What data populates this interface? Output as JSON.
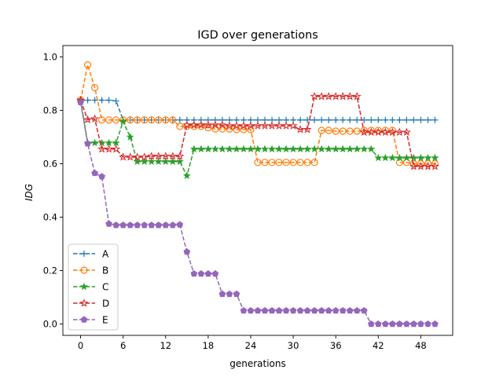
{
  "chart_data": {
    "type": "line",
    "title": "IGD over generations",
    "xlabel": "generations",
    "ylabel": "IDG",
    "xlim": [
      -2.5,
      52.5
    ],
    "ylim": [
      -0.0425,
      1.0425
    ],
    "xticks": [
      0,
      6,
      12,
      18,
      24,
      30,
      36,
      42,
      48
    ],
    "yticks": [
      "0.0",
      "0.2",
      "0.4",
      "0.6",
      "0.8",
      "1.0"
    ],
    "grid": false,
    "legend_position": "lower left",
    "x": [
      0,
      1,
      2,
      3,
      4,
      5,
      6,
      7,
      8,
      9,
      10,
      11,
      12,
      13,
      14,
      15,
      16,
      17,
      18,
      19,
      20,
      21,
      22,
      23,
      24,
      25,
      26,
      27,
      28,
      29,
      30,
      31,
      32,
      33,
      34,
      35,
      36,
      37,
      38,
      39,
      40,
      41,
      42,
      43,
      44,
      45,
      46,
      47,
      48,
      49,
      50
    ],
    "series": [
      {
        "name": "A",
        "color": "#1f77b4",
        "marker": "plus",
        "values": [
          0.838,
          0.838,
          0.838,
          0.838,
          0.838,
          0.835,
          0.764,
          0.764,
          0.764,
          0.764,
          0.764,
          0.764,
          0.764,
          0.764,
          0.764,
          0.764,
          0.764,
          0.764,
          0.764,
          0.764,
          0.764,
          0.764,
          0.764,
          0.764,
          0.764,
          0.764,
          0.764,
          0.764,
          0.764,
          0.764,
          0.764,
          0.764,
          0.764,
          0.764,
          0.764,
          0.764,
          0.764,
          0.764,
          0.764,
          0.764,
          0.764,
          0.764,
          0.764,
          0.764,
          0.764,
          0.764,
          0.764,
          0.764,
          0.764,
          0.764,
          0.764
        ]
      },
      {
        "name": "B",
        "color": "#ff7f0e",
        "marker": "circle",
        "values": [
          0.838,
          0.97,
          0.885,
          0.764,
          0.764,
          0.764,
          0.764,
          0.764,
          0.764,
          0.764,
          0.764,
          0.764,
          0.764,
          0.764,
          0.74,
          0.74,
          0.74,
          0.74,
          0.735,
          0.73,
          0.73,
          0.73,
          0.728,
          0.728,
          0.728,
          0.605,
          0.605,
          0.605,
          0.605,
          0.605,
          0.605,
          0.605,
          0.605,
          0.605,
          0.725,
          0.725,
          0.722,
          0.722,
          0.722,
          0.722,
          0.725,
          0.725,
          0.725,
          0.725,
          0.725,
          0.605,
          0.605,
          0.6,
          0.6,
          0.6,
          0.6
        ]
      },
      {
        "name": "C",
        "color": "#2ca02c",
        "marker": "star",
        "values": [
          0.838,
          0.678,
          0.678,
          0.678,
          0.678,
          0.678,
          0.758,
          0.7,
          0.608,
          0.608,
          0.608,
          0.608,
          0.608,
          0.608,
          0.608,
          0.555,
          0.655,
          0.655,
          0.655,
          0.655,
          0.655,
          0.655,
          0.655,
          0.655,
          0.655,
          0.655,
          0.655,
          0.655,
          0.655,
          0.655,
          0.655,
          0.655,
          0.655,
          0.655,
          0.655,
          0.655,
          0.655,
          0.655,
          0.655,
          0.655,
          0.655,
          0.655,
          0.622,
          0.622,
          0.622,
          0.622,
          0.622,
          0.622,
          0.622,
          0.622,
          0.622
        ]
      },
      {
        "name": "D",
        "color": "#d62728",
        "marker": "star-hollow",
        "values": [
          0.838,
          0.765,
          0.768,
          0.655,
          0.655,
          0.655,
          0.625,
          0.625,
          0.625,
          0.625,
          0.628,
          0.628,
          0.628,
          0.628,
          0.628,
          0.745,
          0.745,
          0.745,
          0.745,
          0.745,
          0.745,
          0.742,
          0.742,
          0.742,
          0.742,
          0.742,
          0.742,
          0.742,
          0.742,
          0.742,
          0.742,
          0.728,
          0.728,
          0.852,
          0.852,
          0.852,
          0.852,
          0.852,
          0.852,
          0.852,
          0.718,
          0.718,
          0.718,
          0.718,
          0.718,
          0.718,
          0.718,
          0.59,
          0.59,
          0.59,
          0.59
        ]
      },
      {
        "name": "E",
        "color": "#9467bd",
        "marker": "pentagon",
        "values": [
          0.83,
          0.675,
          0.565,
          0.552,
          0.375,
          0.37,
          0.37,
          0.37,
          0.37,
          0.37,
          0.37,
          0.37,
          0.37,
          0.37,
          0.372,
          0.27,
          0.188,
          0.188,
          0.188,
          0.188,
          0.112,
          0.112,
          0.112,
          0.05,
          0.05,
          0.05,
          0.05,
          0.05,
          0.05,
          0.05,
          0.05,
          0.05,
          0.05,
          0.05,
          0.05,
          0.05,
          0.05,
          0.05,
          0.05,
          0.05,
          0.05,
          0.0,
          0.0,
          0.0,
          0.0,
          0.0,
          0.0,
          0.0,
          0.0,
          0.0,
          0.0
        ]
      }
    ]
  }
}
